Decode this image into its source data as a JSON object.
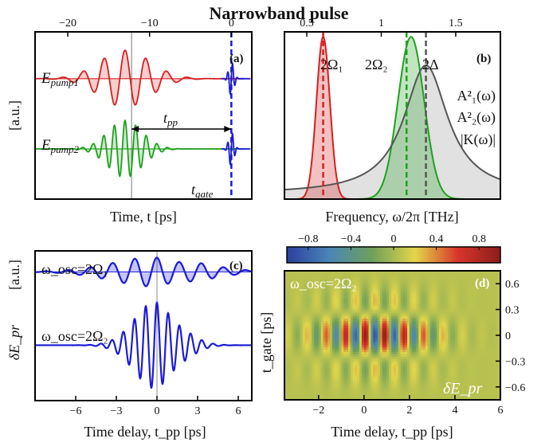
{
  "figure_title": "Narrowband pulse",
  "chart_data": [
    {
      "panel": "(a)",
      "type": "line",
      "xlabel": "Time, t  [ps]",
      "ylabel": "[a.u.]",
      "xlim": [
        -24,
        2.5
      ],
      "x_ticks": [
        -20,
        -10,
        0
      ],
      "x_tick_labels": [
        "−20",
        "−10",
        "0"
      ],
      "x_axis_position": "top",
      "series": [
        {
          "name": "E_pump1",
          "label_main": "E",
          "label_sub": "pump1",
          "color": "#d42020",
          "center": -13,
          "width": 4.4,
          "period": 2.55,
          "amplitude": 1.0,
          "baseline": 0.72
        },
        {
          "name": "E_pump2",
          "label_main": "E",
          "label_sub": "pump2",
          "color": "#20a020",
          "center": -13,
          "width": 3.0,
          "period": 1.3,
          "amplitude": 1.0,
          "baseline": 0.3
        },
        {
          "name": "t_gate",
          "label_main": "t",
          "label_sub": "gate",
          "color": "#1a1ad8",
          "position": 0
        }
      ],
      "annotations": [
        {
          "text_main": "t",
          "text_sub": "pp",
          "from": -12.2,
          "to": 0
        }
      ]
    },
    {
      "panel": "(b)",
      "type": "line",
      "xlabel": "Frequency, ω/2π  [THz]",
      "xlim": [
        0.35,
        1.8
      ],
      "x_ticks": [
        0.5,
        1,
        1.5
      ],
      "x_tick_labels": [
        "0.5",
        "1",
        "1.5"
      ],
      "x_axis_position": "top",
      "series": [
        {
          "name": "A²₁(ω)",
          "color": "#d42020",
          "center": 0.61,
          "sigma": 0.045,
          "peak": 0.97
        },
        {
          "name": "A²₂(ω)",
          "color": "#20a020",
          "center": 1.2,
          "sigma": 0.088,
          "peak": 0.97
        },
        {
          "name": "|K(ω)|",
          "color": "#555555",
          "center": 1.3,
          "halfwidth": 0.18,
          "peak": 0.8,
          "base": 0.03
        }
      ],
      "markers": [
        {
          "label": "2Ω₁",
          "x": 0.61,
          "color": "#d42020"
        },
        {
          "label": "2Ω₂",
          "x": 1.17,
          "color": "#20a020"
        },
        {
          "label": "2Δ",
          "x": 1.3,
          "color": "#555555"
        }
      ],
      "legend": [
        {
          "text": "A²₁(ω)",
          "color": "#d42020"
        },
        {
          "text": "A²₂(ω)",
          "color": "#20a020"
        },
        {
          "text": "|K(ω)|",
          "color": "#555555"
        }
      ]
    },
    {
      "panel": "(c)",
      "type": "line",
      "xlabel": "Time delay, t_pp  [ps]",
      "ylabel": "δE_pr",
      "ylabel2": "[a.u.]",
      "xlim": [
        -9,
        7
      ],
      "x_ticks": [
        -6,
        -3,
        0,
        3,
        6
      ],
      "x_tick_labels": [
        "−6",
        "−3",
        "0",
        "3",
        "6"
      ],
      "series": [
        {
          "name": "ω_osc=2Ω₁",
          "color": "#1a1ad8",
          "width": 3.2,
          "period": 1.64,
          "amplitude": 1.0,
          "baseline": 0.86,
          "scale": 0.1
        },
        {
          "name": "ω_osc=2Ω₂",
          "color": "#1a1ad8",
          "width": 1.6,
          "period": 0.83,
          "amplitude": 1.0,
          "baseline": 0.37,
          "scale": 0.3
        }
      ]
    },
    {
      "panel": "(d)",
      "type": "heatmap",
      "xlabel": "Time delay, t_pp  [ps]",
      "ylabel": "t_gate  [ps]",
      "xlim": [
        -3.5,
        6
      ],
      "ylim": [
        -0.75,
        0.75
      ],
      "x_ticks": [
        -2,
        0,
        2,
        4,
        6
      ],
      "x_tick_labels": [
        "−2",
        "0",
        "2",
        "4",
        "6"
      ],
      "y_ticks": [
        0.6,
        0.3,
        0,
        -0.3,
        -0.6
      ],
      "y_tick_labels": [
        "0.6",
        "0.3",
        "0",
        "−0.3",
        "−0.6"
      ],
      "colorbar_ticks": [
        -0.8,
        -0.4,
        0,
        0.4,
        0.8
      ],
      "colorbar_tick_labels": [
        "−0.8",
        "−0.4",
        "0",
        "0.4",
        "0.8"
      ],
      "color_range": [
        -1,
        1
      ],
      "colormap": [
        "#2b3f9e",
        "#4a86b8",
        "#6ea05a",
        "#e3d64a",
        "#d8352a",
        "#8c1e1c"
      ],
      "inset_label": "ω_osc=2Ω₂",
      "field_label": "δE_pr"
    }
  ]
}
